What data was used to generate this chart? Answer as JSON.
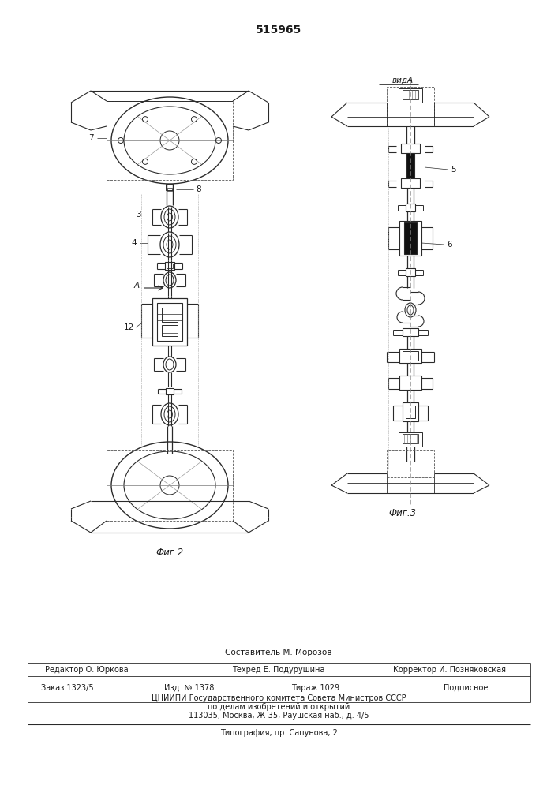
{
  "patent_number": "515965",
  "fig2_label": "Фиг.2",
  "fig3_label": "Фиг.3",
  "vid_label": "видА",
  "bg_color": "#ffffff",
  "line_color": "#2a2a2a",
  "dash_color": "#555555",
  "footer": {
    "composer": "Составитель М. Морозов",
    "editor": "Редактор О. Юркова",
    "techred": "Техред Е. Подурушина",
    "corrector": "Корректор И. Позняковская",
    "order": "Заказ 1323/5",
    "izd": "Изд. № 1378",
    "tirazh": "Тираж 1029",
    "podp": "Подписное",
    "org1": "ЦНИИПИ Государственного комитета Совета Министров СССР",
    "org2": "по делам изобретений и открытий",
    "org3": "113035, Москва, Ж-35, Раушская наб., д. 4/5",
    "tip": "Типография, пр. Сапунова, 2"
  }
}
